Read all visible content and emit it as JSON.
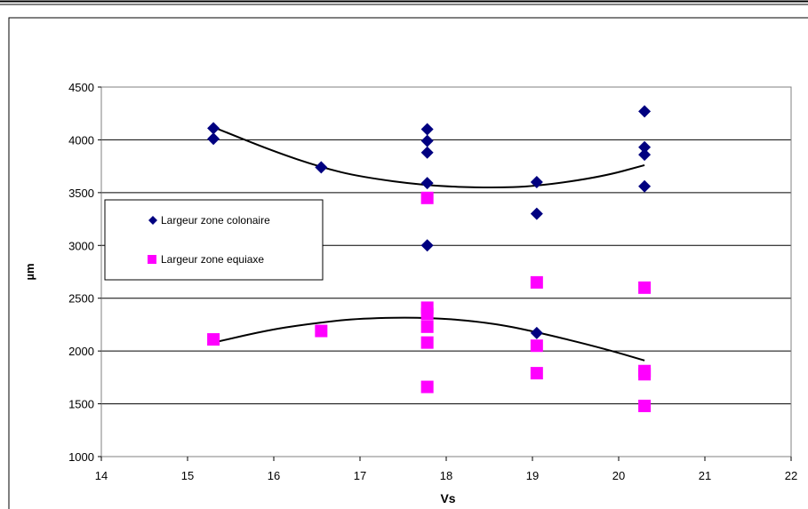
{
  "chart_data": {
    "type": "scatter",
    "title": "",
    "xlabel": "Vs",
    "ylabel": "µm",
    "xlim": [
      14,
      22
    ],
    "ylim": [
      1000,
      4500
    ],
    "x_ticks": [
      "14",
      "15",
      "16",
      "17",
      "18",
      "19",
      "20",
      "21",
      "22"
    ],
    "y_ticks": [
      "1000",
      "1500",
      "2000",
      "2500",
      "3000",
      "3500",
      "4000",
      "4500"
    ],
    "grid": "horizontal",
    "legend_position": "middle-left",
    "series": [
      {
        "name": "Largeur zone colonaire",
        "marker": "diamond",
        "color": "#000080",
        "points": [
          [
            15.3,
            4110
          ],
          [
            15.3,
            4010
          ],
          [
            16.55,
            3740
          ],
          [
            17.78,
            4100
          ],
          [
            17.78,
            3990
          ],
          [
            17.78,
            3880
          ],
          [
            17.78,
            3590
          ],
          [
            17.78,
            3000
          ],
          [
            19.05,
            3600
          ],
          [
            19.05,
            3300
          ],
          [
            19.05,
            2170
          ],
          [
            20.3,
            4270
          ],
          [
            20.3,
            3930
          ],
          [
            20.3,
            3860
          ],
          [
            20.3,
            3560
          ]
        ],
        "trend": [
          [
            15.3,
            4120
          ],
          [
            16.0,
            3890
          ],
          [
            16.55,
            3740
          ],
          [
            17.0,
            3650
          ],
          [
            17.78,
            3565
          ],
          [
            18.5,
            3545
          ],
          [
            19.05,
            3560
          ],
          [
            19.8,
            3650
          ],
          [
            20.3,
            3760
          ]
        ]
      },
      {
        "name": "Largeur zone equiaxe",
        "marker": "square",
        "color": "#FF00FF",
        "points": [
          [
            15.3,
            2110
          ],
          [
            16.55,
            2190
          ],
          [
            17.78,
            3450
          ],
          [
            17.78,
            2410
          ],
          [
            17.78,
            2350
          ],
          [
            17.78,
            2230
          ],
          [
            17.78,
            2080
          ],
          [
            17.78,
            1660
          ],
          [
            19.05,
            2650
          ],
          [
            19.05,
            2050
          ],
          [
            19.05,
            1790
          ],
          [
            20.3,
            2600
          ],
          [
            20.3,
            1810
          ],
          [
            20.3,
            1780
          ],
          [
            20.3,
            1480
          ]
        ],
        "trend": [
          [
            15.3,
            2080
          ],
          [
            16.0,
            2210
          ],
          [
            16.55,
            2270
          ],
          [
            17.0,
            2310
          ],
          [
            17.78,
            2320
          ],
          [
            18.5,
            2270
          ],
          [
            19.05,
            2180
          ],
          [
            19.8,
            2030
          ],
          [
            20.3,
            1910
          ]
        ]
      }
    ]
  }
}
